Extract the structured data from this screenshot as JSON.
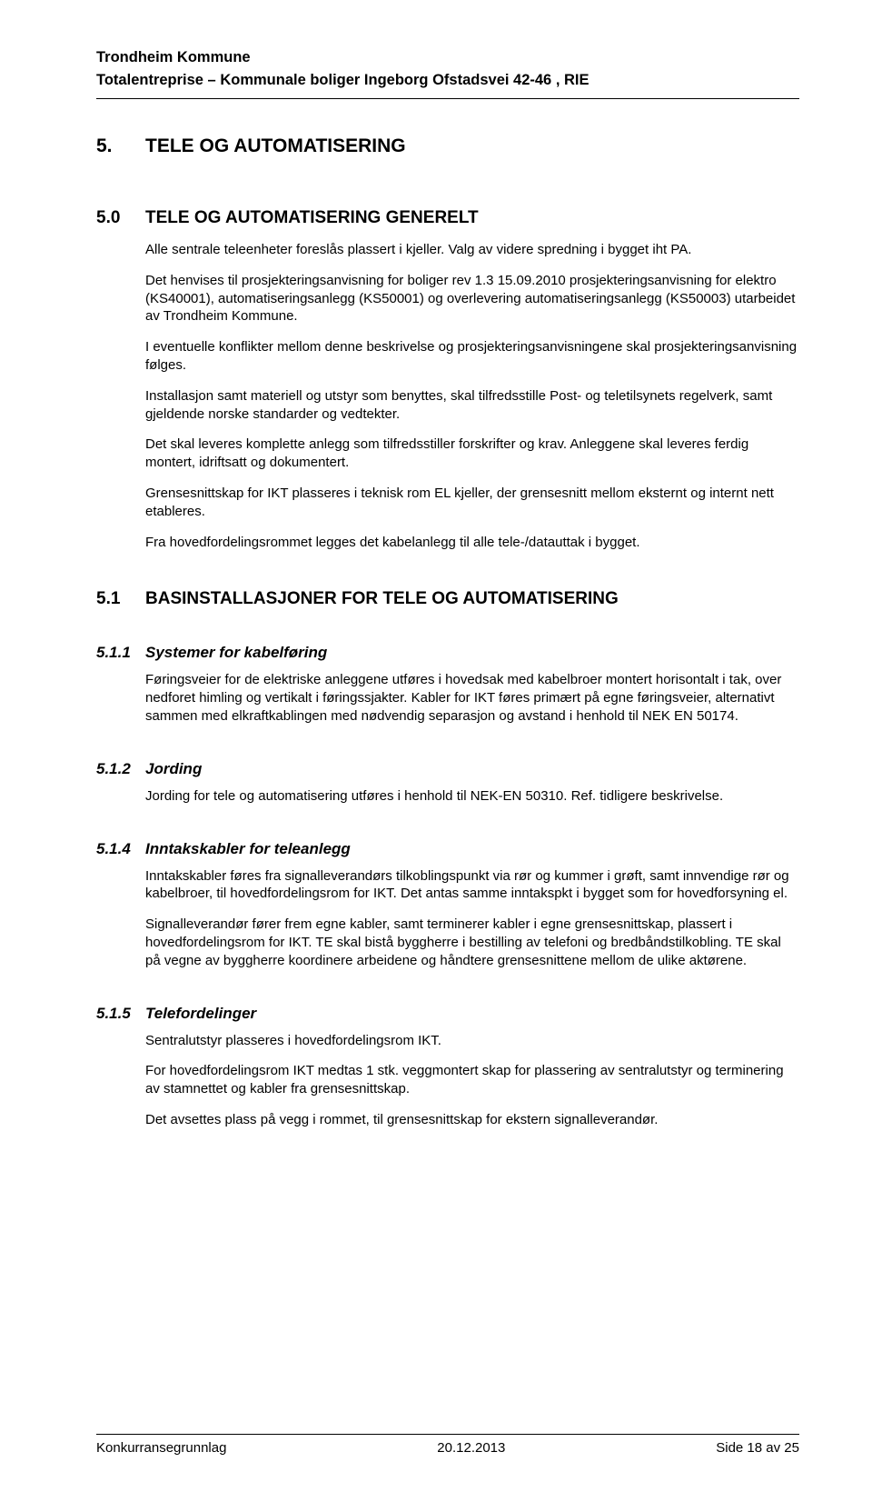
{
  "header": {
    "line1": "Trondheim Kommune",
    "line2": "Totalentreprise – Kommunale boliger Ingeborg Ofstadsvei 42-46 , RIE"
  },
  "sections": {
    "s5": {
      "num": "5.",
      "title": "TELE OG AUTOMATISERING"
    },
    "s50": {
      "num": "5.0",
      "title": "TELE OG AUTOMATISERING GENERELT",
      "p": [
        "Alle sentrale teleenheter foreslås plassert i kjeller. Valg av videre spredning i bygget iht PA.",
        "Det henvises til prosjekteringsanvisning for boliger rev 1.3 15.09.2010 prosjekteringsanvisning for elektro (KS40001), automatiseringsanlegg (KS50001) og overlevering automatiseringsanlegg (KS50003)  utarbeidet av Trondheim Kommune.",
        "I eventuelle konflikter mellom denne beskrivelse og prosjekteringsanvisningene skal prosjekteringsanvisning følges.",
        "Installasjon samt materiell og utstyr som benyttes, skal tilfredsstille Post- og teletilsynets regelverk, samt gjeldende norske standarder og vedtekter.",
        "Det skal leveres komplette anlegg som tilfredsstiller forskrifter og krav. Anleggene skal leveres ferdig montert, idriftsatt og dokumentert.",
        "Grensesnittskap for IKT plasseres i teknisk rom EL kjeller, der grensesnitt mellom eksternt og internt nett etableres.",
        "Fra hovedfordelingsrommet legges det kabelanlegg til alle tele-/datauttak i bygget."
      ]
    },
    "s51": {
      "num": "5.1",
      "title": "BASINSTALLASJONER FOR TELE OG AUTOMATISERING"
    },
    "s511": {
      "num": "5.1.1",
      "title": "Systemer for kabelføring",
      "p": [
        "Føringsveier for de elektriske anleggene utføres i hovedsak med kabelbroer montert horisontalt i tak, over nedforet himling og vertikalt i føringssjakter. Kabler for IKT føres primært på egne føringsveier, alternativt sammen med elkraftkablingen med nødvendig separasjon og avstand i henhold til NEK EN 50174."
      ]
    },
    "s512": {
      "num": "5.1.2",
      "title": "Jording",
      "p": [
        "Jording for tele og automatisering utføres i henhold til NEK-EN 50310. Ref. tidligere beskrivelse."
      ]
    },
    "s514": {
      "num": "5.1.4",
      "title": "Inntakskabler for teleanlegg",
      "p": [
        "Inntakskabler føres fra signalleverandørs tilkoblingspunkt via rør og kummer i grøft, samt innvendige rør og kabelbroer, til hovedfordelingsrom for IKT. Det antas samme inntakspkt i bygget som for hovedforsyning el.",
        "Signalleverandør fører frem egne kabler, samt terminerer kabler i egne grensesnittskap, plassert i hovedfordelingsrom for IKT. TE skal bistå byggherre i bestilling av telefoni og bredbåndstilkobling. TE skal på vegne av byggherre koordinere arbeidene og håndtere grensesnittene mellom de ulike aktørene."
      ]
    },
    "s515": {
      "num": "5.1.5",
      "title": "Telefordelinger",
      "p": [
        "Sentralutstyr plasseres i hovedfordelingsrom IKT.",
        "For hovedfordelingsrom IKT medtas 1 stk. veggmontert skap for plassering av sentralutstyr og terminering av stamnettet og kabler fra grensesnittskap.",
        "Det avsettes plass på vegg i rommet, til grensesnittskap for ekstern signalleverandør."
      ]
    }
  },
  "footer": {
    "left": "Konkurransegrunnlag",
    "center": "20.12.2013",
    "right": "Side 18 av 25"
  }
}
